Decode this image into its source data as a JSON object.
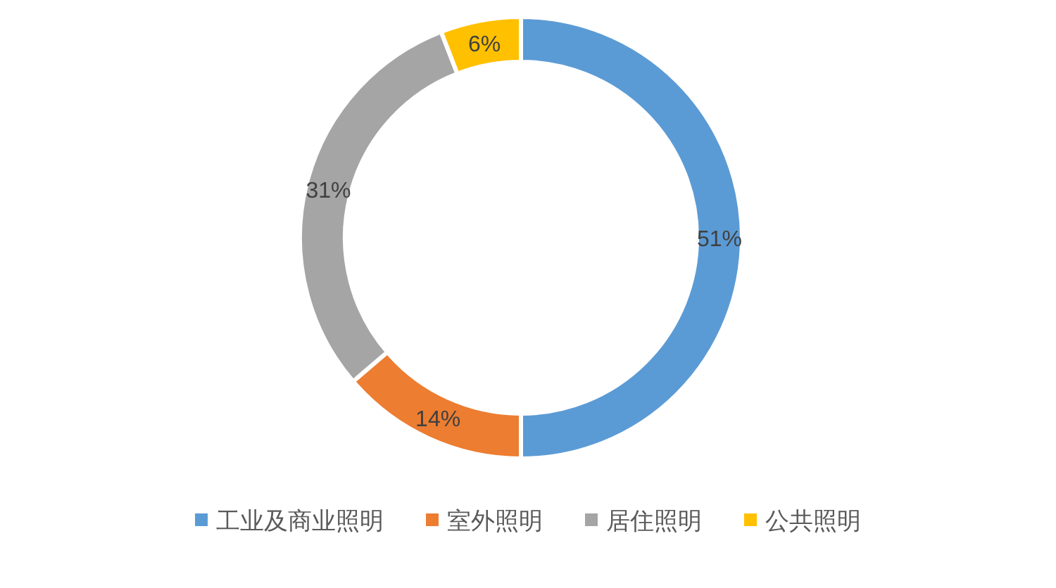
{
  "chart_data": {
    "type": "donut",
    "categories": [
      "工业及商业照明",
      "室外照明",
      "居住照明",
      "公共照明"
    ],
    "values": [
      51,
      14,
      31,
      6
    ],
    "value_labels": [
      "51%",
      "14%",
      "31%",
      "6%"
    ],
    "colors": [
      "#5b9bd5",
      "#ed7d31",
      "#a5a5a5",
      "#ffc000"
    ],
    "legend": "bottom"
  }
}
